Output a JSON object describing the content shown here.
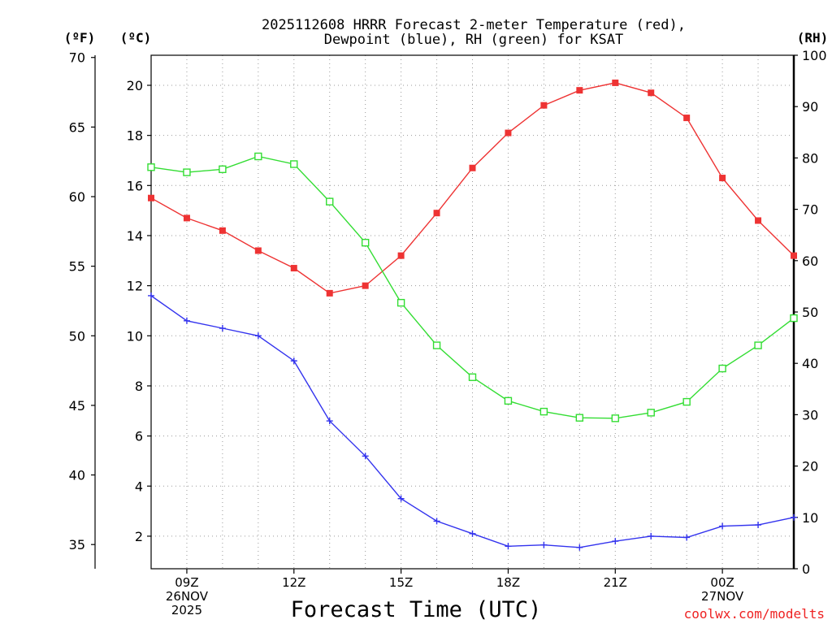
{
  "chart_data": {
    "type": "line",
    "title_line1": "2025112608 HRRR Forecast 2-meter Temperature (red),",
    "title_line2": "Dewpoint (blue), RH (green) for KSAT",
    "xlabel": "Forecast Time (UTC)",
    "watermark": "coolwx.com/modelts",
    "units": {
      "fahrenheit": "(ºF)",
      "celsius": "(ºC)",
      "rh": "(RH)"
    },
    "x_hours": [
      8,
      9,
      10,
      11,
      12,
      13,
      14,
      15,
      16,
      17,
      18,
      19,
      20,
      21,
      22,
      23,
      24,
      25,
      26
    ],
    "xlim": [
      8,
      26
    ],
    "x_ticks": [
      {
        "hour": 9,
        "lines": [
          "09Z",
          "26NOV",
          "2025"
        ]
      },
      {
        "hour": 12,
        "lines": [
          "12Z"
        ]
      },
      {
        "hour": 15,
        "lines": [
          "15Z"
        ]
      },
      {
        "hour": 18,
        "lines": [
          "18Z"
        ]
      },
      {
        "hour": 21,
        "lines": [
          "21Z"
        ]
      },
      {
        "hour": 24,
        "lines": [
          "00Z",
          "27NOV"
        ]
      }
    ],
    "ylim_celsius": [
      0.7,
      21.2
    ],
    "celsius_ticks": [
      2,
      4,
      6,
      8,
      10,
      12,
      14,
      16,
      18,
      20
    ],
    "fahrenheit_ticks": [
      35,
      40,
      45,
      50,
      55,
      60,
      65,
      70
    ],
    "rh_lim": [
      0,
      100
    ],
    "rh_ticks": [
      0,
      10,
      20,
      30,
      40,
      50,
      60,
      70,
      80,
      90,
      100
    ],
    "series": [
      {
        "name": "2-meter Temperature",
        "unit": "C",
        "color": "#ee3333",
        "marker": "filled-square",
        "values": [
          15.5,
          14.7,
          14.2,
          13.4,
          12.7,
          11.7,
          12.0,
          13.2,
          14.9,
          16.7,
          18.1,
          19.2,
          19.8,
          20.1,
          19.7,
          18.7,
          16.3,
          14.6,
          13.2
        ]
      },
      {
        "name": "Dewpoint",
        "unit": "C",
        "color": "#3333ee",
        "marker": "plus",
        "values": [
          11.6,
          10.6,
          10.3,
          10.0,
          9.0,
          6.6,
          5.2,
          3.5,
          2.6,
          2.1,
          1.6,
          1.65,
          1.55,
          1.8,
          2.0,
          1.95,
          2.4,
          2.45,
          2.75
        ]
      },
      {
        "name": "RH",
        "unit": "%",
        "color": "#33dd33",
        "marker": "open-square",
        "values": [
          78.2,
          77.2,
          77.8,
          80.3,
          78.8,
          71.5,
          63.5,
          51.8,
          43.5,
          37.3,
          32.7,
          30.6,
          29.4,
          29.3,
          30.4,
          32.5,
          39.0,
          43.5,
          48.8
        ]
      }
    ]
  }
}
